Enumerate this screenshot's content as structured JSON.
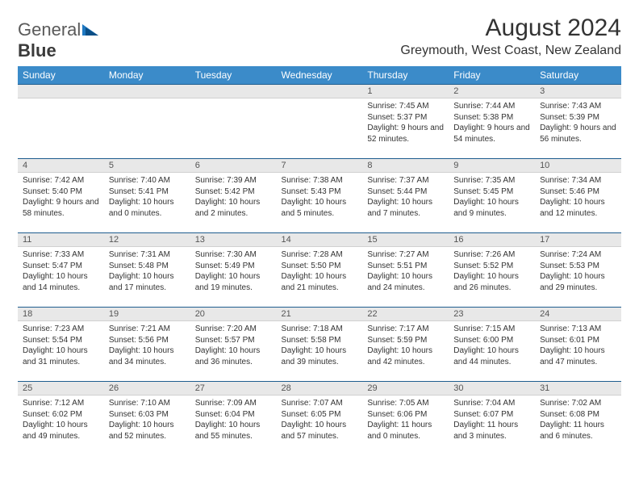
{
  "logo": {
    "general": "General",
    "blue": "Blue"
  },
  "title": "August 2024",
  "location": "Greymouth, West Coast, New Zealand",
  "colors": {
    "header_bg": "#3b8bc9",
    "header_border": "#1f5e8f",
    "daynum_bg": "#e8e8e8",
    "text": "#333333"
  },
  "weekdays": [
    "Sunday",
    "Monday",
    "Tuesday",
    "Wednesday",
    "Thursday",
    "Friday",
    "Saturday"
  ],
  "weeks": [
    [
      {
        "n": "",
        "sr": "",
        "ss": "",
        "dl": ""
      },
      {
        "n": "",
        "sr": "",
        "ss": "",
        "dl": ""
      },
      {
        "n": "",
        "sr": "",
        "ss": "",
        "dl": ""
      },
      {
        "n": "",
        "sr": "",
        "ss": "",
        "dl": ""
      },
      {
        "n": "1",
        "sr": "Sunrise: 7:45 AM",
        "ss": "Sunset: 5:37 PM",
        "dl": "Daylight: 9 hours and 52 minutes."
      },
      {
        "n": "2",
        "sr": "Sunrise: 7:44 AM",
        "ss": "Sunset: 5:38 PM",
        "dl": "Daylight: 9 hours and 54 minutes."
      },
      {
        "n": "3",
        "sr": "Sunrise: 7:43 AM",
        "ss": "Sunset: 5:39 PM",
        "dl": "Daylight: 9 hours and 56 minutes."
      }
    ],
    [
      {
        "n": "4",
        "sr": "Sunrise: 7:42 AM",
        "ss": "Sunset: 5:40 PM",
        "dl": "Daylight: 9 hours and 58 minutes."
      },
      {
        "n": "5",
        "sr": "Sunrise: 7:40 AM",
        "ss": "Sunset: 5:41 PM",
        "dl": "Daylight: 10 hours and 0 minutes."
      },
      {
        "n": "6",
        "sr": "Sunrise: 7:39 AM",
        "ss": "Sunset: 5:42 PM",
        "dl": "Daylight: 10 hours and 2 minutes."
      },
      {
        "n": "7",
        "sr": "Sunrise: 7:38 AM",
        "ss": "Sunset: 5:43 PM",
        "dl": "Daylight: 10 hours and 5 minutes."
      },
      {
        "n": "8",
        "sr": "Sunrise: 7:37 AM",
        "ss": "Sunset: 5:44 PM",
        "dl": "Daylight: 10 hours and 7 minutes."
      },
      {
        "n": "9",
        "sr": "Sunrise: 7:35 AM",
        "ss": "Sunset: 5:45 PM",
        "dl": "Daylight: 10 hours and 9 minutes."
      },
      {
        "n": "10",
        "sr": "Sunrise: 7:34 AM",
        "ss": "Sunset: 5:46 PM",
        "dl": "Daylight: 10 hours and 12 minutes."
      }
    ],
    [
      {
        "n": "11",
        "sr": "Sunrise: 7:33 AM",
        "ss": "Sunset: 5:47 PM",
        "dl": "Daylight: 10 hours and 14 minutes."
      },
      {
        "n": "12",
        "sr": "Sunrise: 7:31 AM",
        "ss": "Sunset: 5:48 PM",
        "dl": "Daylight: 10 hours and 17 minutes."
      },
      {
        "n": "13",
        "sr": "Sunrise: 7:30 AM",
        "ss": "Sunset: 5:49 PM",
        "dl": "Daylight: 10 hours and 19 minutes."
      },
      {
        "n": "14",
        "sr": "Sunrise: 7:28 AM",
        "ss": "Sunset: 5:50 PM",
        "dl": "Daylight: 10 hours and 21 minutes."
      },
      {
        "n": "15",
        "sr": "Sunrise: 7:27 AM",
        "ss": "Sunset: 5:51 PM",
        "dl": "Daylight: 10 hours and 24 minutes."
      },
      {
        "n": "16",
        "sr": "Sunrise: 7:26 AM",
        "ss": "Sunset: 5:52 PM",
        "dl": "Daylight: 10 hours and 26 minutes."
      },
      {
        "n": "17",
        "sr": "Sunrise: 7:24 AM",
        "ss": "Sunset: 5:53 PM",
        "dl": "Daylight: 10 hours and 29 minutes."
      }
    ],
    [
      {
        "n": "18",
        "sr": "Sunrise: 7:23 AM",
        "ss": "Sunset: 5:54 PM",
        "dl": "Daylight: 10 hours and 31 minutes."
      },
      {
        "n": "19",
        "sr": "Sunrise: 7:21 AM",
        "ss": "Sunset: 5:56 PM",
        "dl": "Daylight: 10 hours and 34 minutes."
      },
      {
        "n": "20",
        "sr": "Sunrise: 7:20 AM",
        "ss": "Sunset: 5:57 PM",
        "dl": "Daylight: 10 hours and 36 minutes."
      },
      {
        "n": "21",
        "sr": "Sunrise: 7:18 AM",
        "ss": "Sunset: 5:58 PM",
        "dl": "Daylight: 10 hours and 39 minutes."
      },
      {
        "n": "22",
        "sr": "Sunrise: 7:17 AM",
        "ss": "Sunset: 5:59 PM",
        "dl": "Daylight: 10 hours and 42 minutes."
      },
      {
        "n": "23",
        "sr": "Sunrise: 7:15 AM",
        "ss": "Sunset: 6:00 PM",
        "dl": "Daylight: 10 hours and 44 minutes."
      },
      {
        "n": "24",
        "sr": "Sunrise: 7:13 AM",
        "ss": "Sunset: 6:01 PM",
        "dl": "Daylight: 10 hours and 47 minutes."
      }
    ],
    [
      {
        "n": "25",
        "sr": "Sunrise: 7:12 AM",
        "ss": "Sunset: 6:02 PM",
        "dl": "Daylight: 10 hours and 49 minutes."
      },
      {
        "n": "26",
        "sr": "Sunrise: 7:10 AM",
        "ss": "Sunset: 6:03 PM",
        "dl": "Daylight: 10 hours and 52 minutes."
      },
      {
        "n": "27",
        "sr": "Sunrise: 7:09 AM",
        "ss": "Sunset: 6:04 PM",
        "dl": "Daylight: 10 hours and 55 minutes."
      },
      {
        "n": "28",
        "sr": "Sunrise: 7:07 AM",
        "ss": "Sunset: 6:05 PM",
        "dl": "Daylight: 10 hours and 57 minutes."
      },
      {
        "n": "29",
        "sr": "Sunrise: 7:05 AM",
        "ss": "Sunset: 6:06 PM",
        "dl": "Daylight: 11 hours and 0 minutes."
      },
      {
        "n": "30",
        "sr": "Sunrise: 7:04 AM",
        "ss": "Sunset: 6:07 PM",
        "dl": "Daylight: 11 hours and 3 minutes."
      },
      {
        "n": "31",
        "sr": "Sunrise: 7:02 AM",
        "ss": "Sunset: 6:08 PM",
        "dl": "Daylight: 11 hours and 6 minutes."
      }
    ]
  ]
}
